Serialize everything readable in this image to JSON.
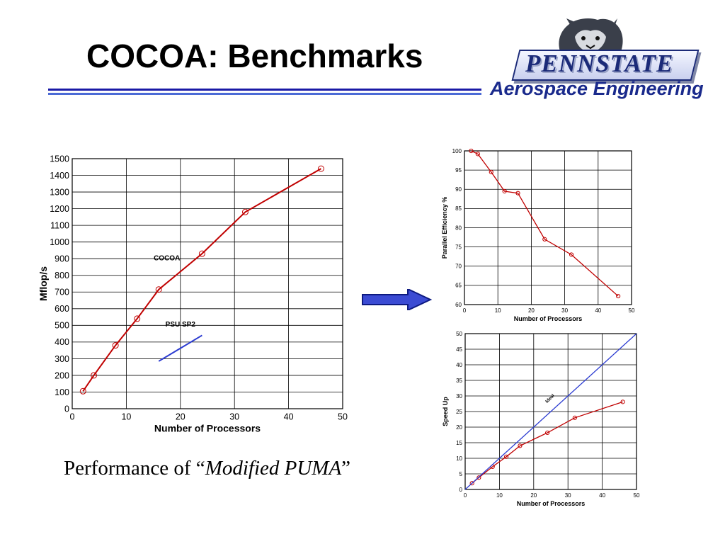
{
  "slide": {
    "title": "COCOA: Benchmarks",
    "logo_text": "PENNSTATE",
    "department": "Aerospace Engineering",
    "caption": {
      "prefix": "Performance of “",
      "emphasis": "Modified PUMA",
      "suffix": "”"
    }
  },
  "colors": {
    "title_rule_dark": "#1a1aa6",
    "title_rule_light": "#4b6bd6",
    "cocoa_series": "#c00000",
    "sp2_series": "#2b3bd1",
    "ideal_series": "#2b3bd1",
    "arrow_fill": "#3b4bd3",
    "department_text": "#1a2a8c"
  },
  "icons": [
    "penn-state-lion-logo",
    "right-arrow-icon"
  ],
  "chart_data": [
    {
      "type": "line",
      "xlabel": "Number of Processors",
      "ylabel": "Mflop/s",
      "xlim": [
        0,
        50
      ],
      "ylim": [
        0,
        1500
      ],
      "xticks": [
        0,
        10,
        20,
        30,
        40,
        50
      ],
      "yticks": [
        0,
        100,
        200,
        300,
        400,
        500,
        600,
        700,
        800,
        900,
        1000,
        1100,
        1200,
        1300,
        1400,
        1500
      ],
      "grid": true,
      "series": [
        {
          "name": "COCOA",
          "markers": true,
          "x": [
            2,
            4,
            8,
            12,
            16,
            24,
            32,
            46
          ],
          "y": [
            105,
            200,
            380,
            540,
            715,
            930,
            1180,
            1440
          ]
        },
        {
          "name": "PSU SP2",
          "markers": false,
          "x": [
            16,
            24
          ],
          "y": [
            285,
            440
          ]
        }
      ]
    },
    {
      "type": "line",
      "xlabel": "Number of Processors",
      "ylabel": "Parallel Efficiency %",
      "xlim": [
        0,
        50
      ],
      "ylim": [
        60,
        100
      ],
      "xticks": [
        0,
        10,
        20,
        30,
        40,
        50
      ],
      "yticks": [
        60,
        65,
        70,
        75,
        80,
        85,
        90,
        95,
        100
      ],
      "grid": true,
      "series": [
        {
          "markers": true,
          "x": [
            2,
            4,
            8,
            12,
            16,
            24,
            32,
            46
          ],
          "y": [
            100,
            99.2,
            94.5,
            89.5,
            89,
            77,
            73,
            62.2
          ]
        }
      ]
    },
    {
      "type": "line",
      "xlabel": "Number of Processors",
      "ylabel": "Speed Up",
      "xlim": [
        0,
        50
      ],
      "ylim": [
        0,
        50
      ],
      "xticks": [
        0,
        10,
        20,
        30,
        40,
        50
      ],
      "yticks": [
        0,
        5,
        10,
        15,
        20,
        25,
        30,
        35,
        40,
        45,
        50
      ],
      "grid": true,
      "series": [
        {
          "markers": true,
          "x": [
            2,
            4,
            8,
            12,
            16,
            24,
            32,
            46
          ],
          "y": [
            2,
            3.8,
            7.3,
            10.5,
            14,
            18.2,
            23,
            28.1
          ]
        },
        {
          "name": "Ideal",
          "markers": false,
          "x": [
            0,
            50
          ],
          "y": [
            0,
            50
          ]
        }
      ]
    }
  ]
}
